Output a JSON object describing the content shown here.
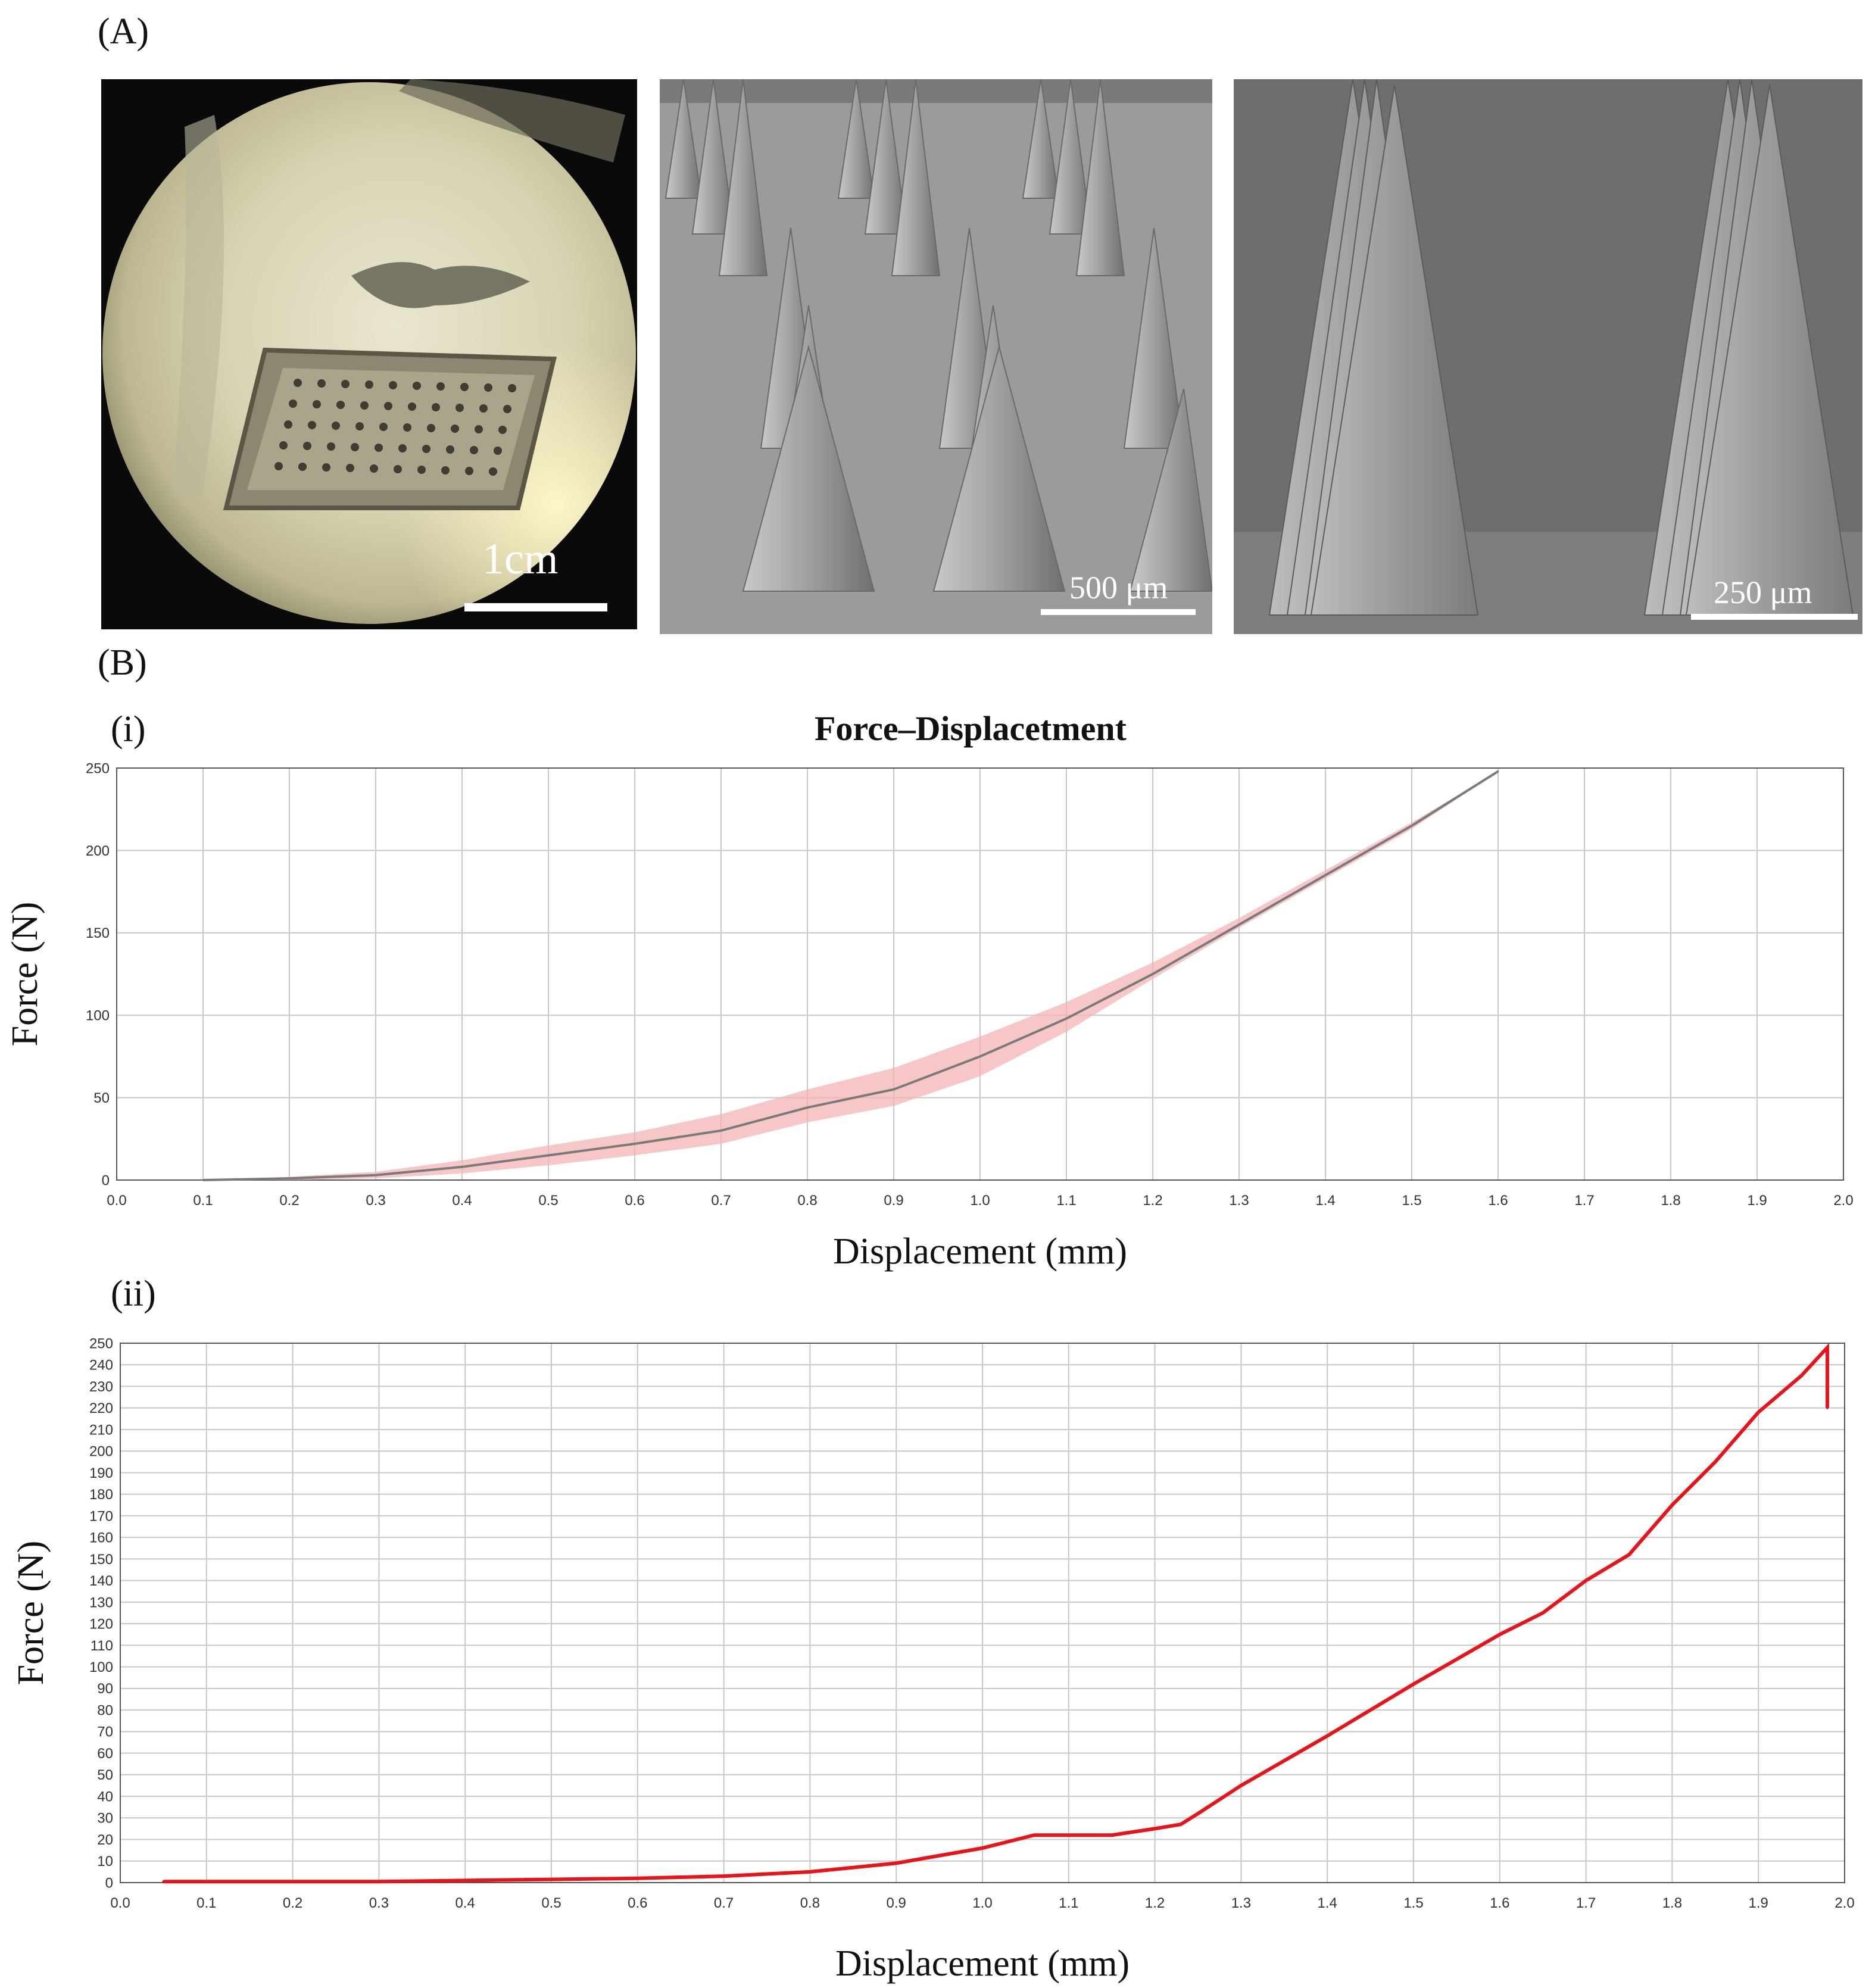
{
  "panel_a": {
    "label": "(A)",
    "images": [
      {
        "name": "optical-photo",
        "scale_label": "1cm"
      },
      {
        "name": "sem-array",
        "scale_label": "500 μm"
      },
      {
        "name": "sem-closeup",
        "scale_label": "250 μm"
      }
    ]
  },
  "panel_b": {
    "label": "(B)"
  },
  "colors": {
    "band": "#f4b4b4",
    "mean_line": "#7a7a7a",
    "red_line": "#e8141b",
    "grid": "#c8c8c8"
  },
  "chart_data": [
    {
      "panel_label": "(i)",
      "type": "line",
      "title": "Force–Displacetment",
      "xlabel": "Displacement (mm)",
      "ylabel": "Force (N)",
      "xlim": [
        0,
        2.0
      ],
      "ylim": [
        0,
        250
      ],
      "xticks": [
        "0.0",
        "0.1",
        "0.2",
        "0.3",
        "0.4",
        "0.5",
        "0.6",
        "0.7",
        "0.8",
        "0.9",
        "1.0",
        "1.1",
        "1.2",
        "1.3",
        "1.4",
        "1.5",
        "1.6",
        "1.7",
        "1.8",
        "1.9",
        "2.0"
      ],
      "yticks": [
        "0",
        "50",
        "100",
        "150",
        "200",
        "250"
      ],
      "grid": true,
      "series": [
        {
          "kind": "mean",
          "x": [
            0.1,
            0.2,
            0.3,
            0.4,
            0.5,
            0.6,
            0.7,
            0.8,
            0.9,
            1.0,
            1.1,
            1.2,
            1.3,
            1.4,
            1.5,
            1.6
          ],
          "y": [
            0,
            1,
            3,
            8,
            15,
            22,
            30,
            44,
            55,
            75,
            98,
            125,
            155,
            185,
            215,
            248
          ],
          "lower": [
            0,
            0,
            1,
            4,
            9,
            15,
            22,
            35,
            45,
            63,
            90,
            122,
            153,
            183,
            213,
            248
          ],
          "upper": [
            0,
            2,
            5,
            12,
            21,
            29,
            40,
            55,
            68,
            87,
            108,
            132,
            159,
            188,
            217,
            248
          ]
        }
      ]
    },
    {
      "panel_label": "(ii)",
      "type": "line",
      "xlabel": "Displacement (mm)",
      "ylabel": "Force (N)",
      "xlim": [
        0,
        2.0
      ],
      "ylim": [
        0,
        250
      ],
      "xticks": [
        "0.0",
        "0.1",
        "0.2",
        "0.3",
        "0.4",
        "0.5",
        "0.6",
        "0.7",
        "0.8",
        "0.9",
        "1.0",
        "1.1",
        "1.2",
        "1.3",
        "1.4",
        "1.5",
        "1.6",
        "1.7",
        "1.8",
        "1.9",
        "2.0"
      ],
      "yticks": [
        "0",
        "10",
        "20",
        "30",
        "40",
        "50",
        "60",
        "70",
        "80",
        "90",
        "100",
        "110",
        "120",
        "130",
        "140",
        "150",
        "160",
        "170",
        "180",
        "190",
        "200",
        "210",
        "220",
        "230",
        "240",
        "250"
      ],
      "grid": true,
      "series": [
        {
          "kind": "single",
          "x": [
            0.05,
            0.1,
            0.2,
            0.3,
            0.4,
            0.5,
            0.6,
            0.7,
            0.8,
            0.9,
            1.0,
            1.04,
            1.06,
            1.1,
            1.15,
            1.2,
            1.23,
            1.25,
            1.3,
            1.4,
            1.5,
            1.6,
            1.65,
            1.7,
            1.75,
            1.8,
            1.85,
            1.9,
            1.95,
            1.98,
            1.98
          ],
          "y": [
            0.5,
            0.5,
            0.5,
            0.5,
            1,
            1.5,
            2,
            3,
            5,
            9,
            16,
            20,
            22,
            22,
            22,
            25,
            27,
            32,
            45,
            68,
            92,
            115,
            125,
            140,
            152,
            175,
            195,
            218,
            235,
            248,
            220
          ]
        }
      ]
    }
  ]
}
